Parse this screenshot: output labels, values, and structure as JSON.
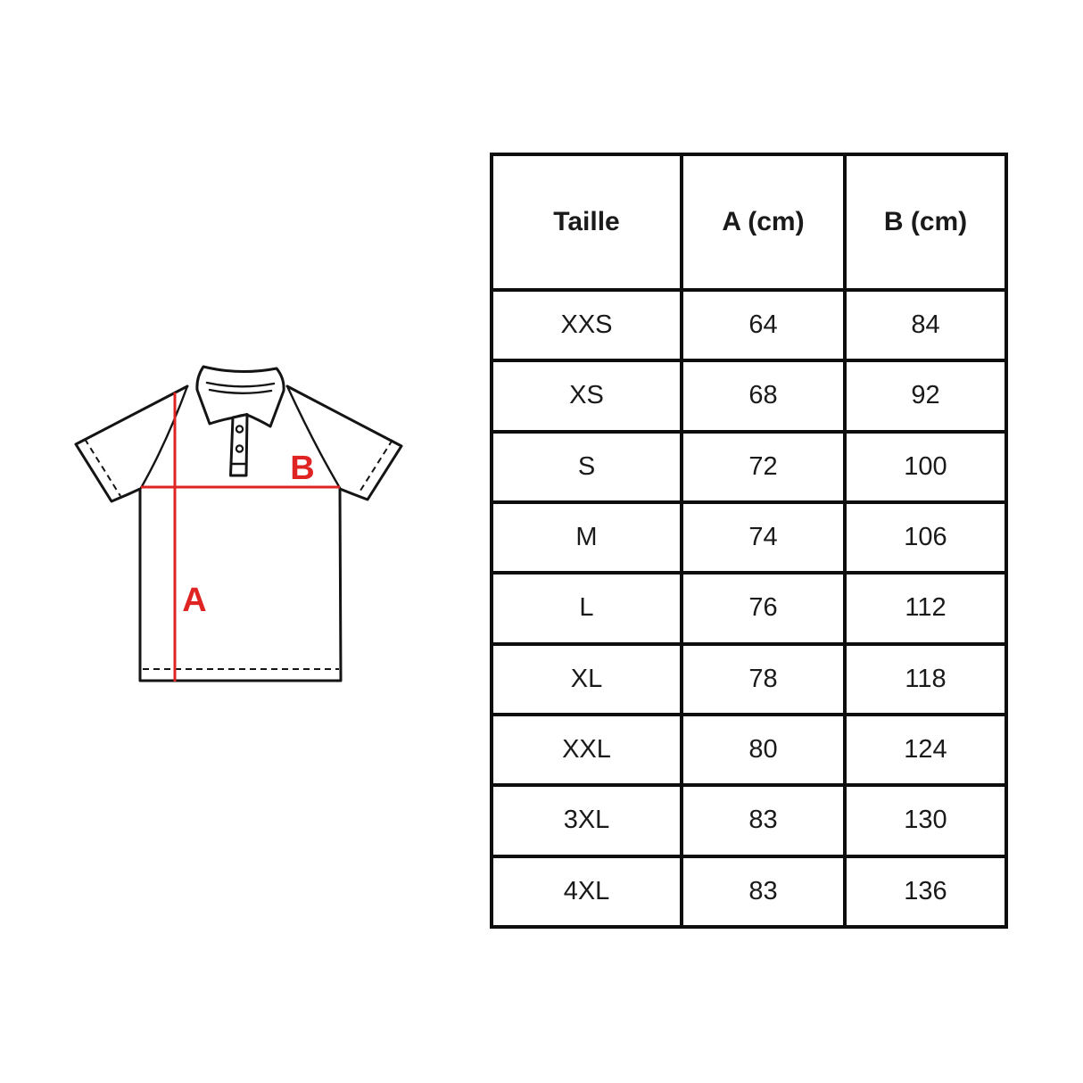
{
  "page": {
    "background": "#ffffff"
  },
  "diagram": {
    "measurement_label_a": "A",
    "measurement_label_b": "B",
    "accent_color": "#e02424",
    "outline_color": "#141414"
  },
  "size_table": {
    "headers": [
      "Taille",
      "A (cm)",
      "B (cm)"
    ],
    "rows": [
      [
        "XXS",
        "64",
        "84"
      ],
      [
        "XS",
        "68",
        "92"
      ],
      [
        "S",
        "72",
        "100"
      ],
      [
        "M",
        "74",
        "106"
      ],
      [
        "L",
        "76",
        "112"
      ],
      [
        "XL",
        "78",
        "118"
      ],
      [
        "XXL",
        "80",
        "124"
      ],
      [
        "3XL",
        "83",
        "130"
      ],
      [
        "4XL",
        "83",
        "136"
      ]
    ]
  }
}
